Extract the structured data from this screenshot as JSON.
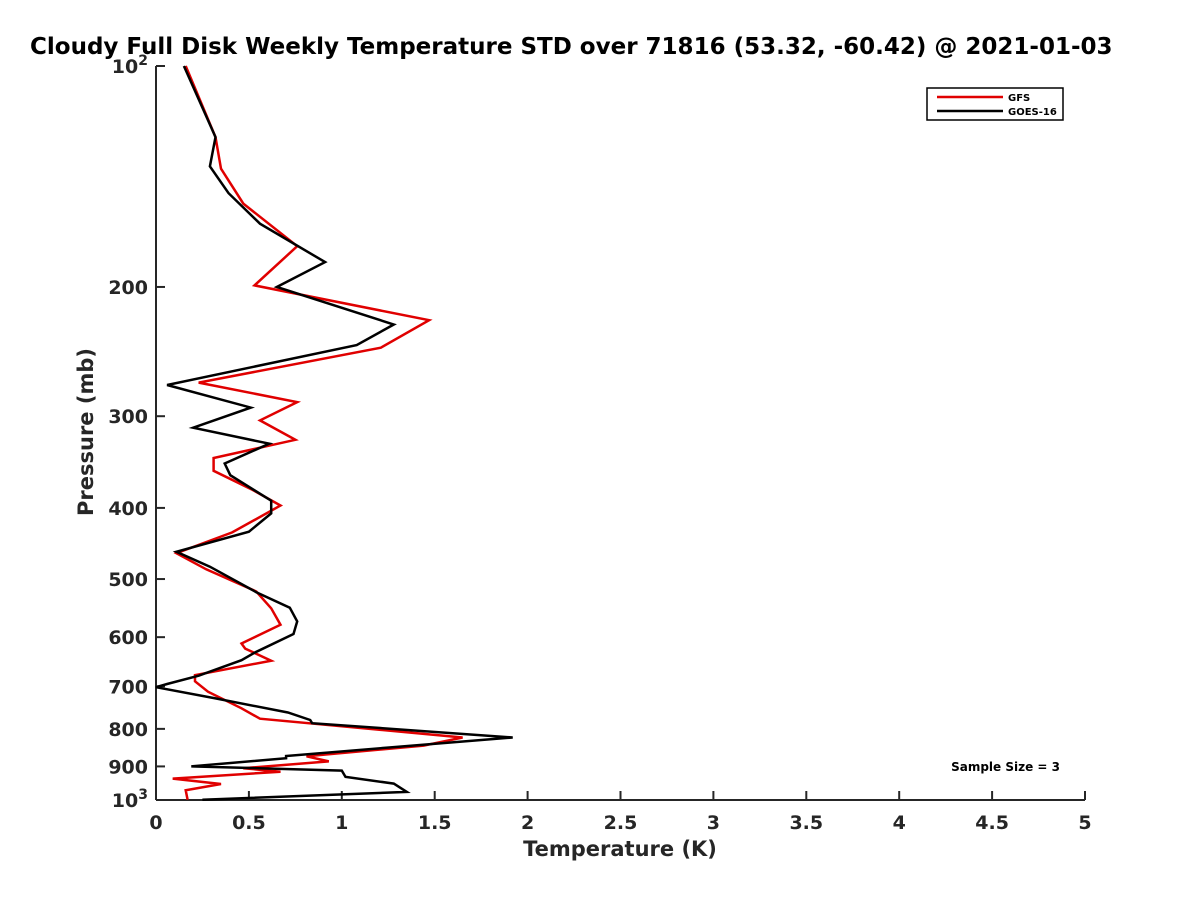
{
  "chart_data": {
    "type": "line",
    "title": "Cloudy Full Disk Weekly Temperature STD over 71816 (53.32, -60.42) @ 2021-01-03",
    "xlabel": "Temperature (K)",
    "ylabel": "Pressure (mb)",
    "xlim": [
      0,
      5
    ],
    "ylim": [
      100,
      1000
    ],
    "y_scale": "log",
    "y_reversed": true,
    "grid": false,
    "legend_position": "top-right",
    "x_ticks": [
      0,
      0.5,
      1,
      1.5,
      2,
      2.5,
      3,
      3.5,
      4,
      4.5,
      5
    ],
    "x_tick_labels": [
      "0",
      "0.5",
      "1",
      "1.5",
      "2",
      "2.5",
      "3",
      "3.5",
      "4",
      "4.5",
      "5"
    ],
    "y_ticks": [
      {
        "value": 100,
        "base": "10",
        "exp": "2"
      },
      {
        "value": 200,
        "label": "200"
      },
      {
        "value": 300,
        "label": "300"
      },
      {
        "value": 400,
        "label": "400"
      },
      {
        "value": 500,
        "label": "500"
      },
      {
        "value": 600,
        "label": "600"
      },
      {
        "value": 700,
        "label": "700"
      },
      {
        "value": 800,
        "label": "800"
      },
      {
        "value": 900,
        "label": "900"
      },
      {
        "value": 1000,
        "base": "10",
        "exp": "3"
      }
    ],
    "series": [
      {
        "name": "GFS",
        "color": "#e00000",
        "points": [
          [
            0.16,
            100
          ],
          [
            0.32,
            125
          ],
          [
            0.35,
            138
          ],
          [
            0.47,
            154
          ],
          [
            0.76,
            176
          ],
          [
            0.53,
            199
          ],
          [
            1.47,
            222
          ],
          [
            1.21,
            242
          ],
          [
            0.23,
            270
          ],
          [
            0.76,
            287
          ],
          [
            0.56,
            304
          ],
          [
            0.75,
            323
          ],
          [
            0.31,
            342
          ],
          [
            0.31,
            356
          ],
          [
            0.52,
            378
          ],
          [
            0.67,
            397
          ],
          [
            0.41,
            432
          ],
          [
            0.11,
            461
          ],
          [
            0.27,
            485
          ],
          [
            0.54,
            520
          ],
          [
            0.62,
            548
          ],
          [
            0.67,
            577
          ],
          [
            0.46,
            612
          ],
          [
            0.48,
            622
          ],
          [
            0.62,
            646
          ],
          [
            0.21,
            676
          ],
          [
            0.21,
            689
          ],
          [
            0.28,
            712
          ],
          [
            0.46,
            750
          ],
          [
            0.56,
            775
          ],
          [
            1.65,
            822
          ],
          [
            1.44,
            843
          ],
          [
            0.81,
            872
          ],
          [
            0.93,
            886
          ],
          [
            0.47,
            905
          ],
          [
            0.67,
            915
          ],
          [
            0.09,
            935
          ],
          [
            0.35,
            951
          ],
          [
            0.16,
            970
          ],
          [
            0.17,
            999
          ]
        ]
      },
      {
        "name": "GOES-16",
        "color": "#000000",
        "points": [
          [
            0.15,
            100
          ],
          [
            0.32,
            125
          ],
          [
            0.29,
            137
          ],
          [
            0.39,
            149
          ],
          [
            0.56,
            164
          ],
          [
            0.91,
            185
          ],
          [
            0.65,
            200
          ],
          [
            1.28,
            225
          ],
          [
            1.08,
            240
          ],
          [
            0.06,
            272
          ],
          [
            0.51,
            292
          ],
          [
            0.2,
            311
          ],
          [
            0.61,
            327
          ],
          [
            0.37,
            348
          ],
          [
            0.4,
            361
          ],
          [
            0.62,
            391
          ],
          [
            0.62,
            407
          ],
          [
            0.5,
            431
          ],
          [
            0.11,
            459
          ],
          [
            0.29,
            481
          ],
          [
            0.54,
            521
          ],
          [
            0.72,
            547
          ],
          [
            0.76,
            571
          ],
          [
            0.74,
            594
          ],
          [
            0.53,
            630
          ],
          [
            0.46,
            645
          ],
          [
            0.23,
            677
          ],
          [
            0.06,
            695
          ],
          [
            0.0,
            702
          ],
          [
            0.32,
            727
          ],
          [
            0.71,
            760
          ],
          [
            0.83,
            778
          ],
          [
            0.84,
            786
          ],
          [
            1.92,
            822
          ],
          [
            1.28,
            847
          ],
          [
            0.7,
            871
          ],
          [
            0.7,
            877
          ],
          [
            0.19,
            900
          ],
          [
            1.0,
            912
          ],
          [
            1.02,
            930
          ],
          [
            1.28,
            950
          ],
          [
            1.35,
            975
          ],
          [
            0.25,
            999
          ]
        ]
      }
    ],
    "annotations": [
      {
        "text": "Sample Size = 3"
      }
    ]
  }
}
